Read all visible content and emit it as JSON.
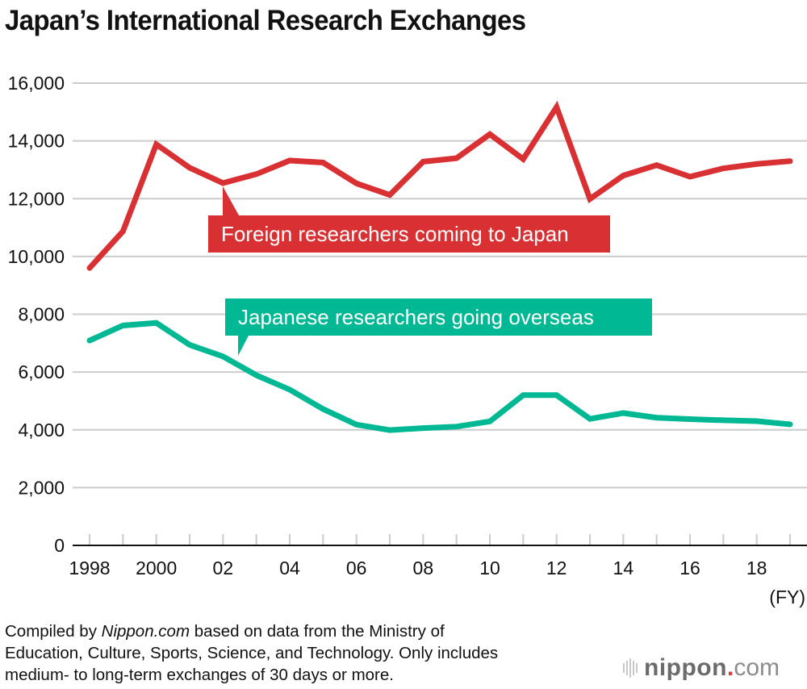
{
  "title": "Japan’s International Research Exchanges",
  "x_unit": "(FY)",
  "note": {
    "prefix": "Compiled by ",
    "source_italic": "Nippon.com",
    "rest_line1": " based on data from the Ministry of",
    "line2": "Education, Culture, Sports, Science, and Technology. Only includes",
    "line3": "medium- to long-term exchanges of 30 days or more."
  },
  "logo": {
    "brand": "nippon",
    "dot": ".",
    "suffix": "com"
  },
  "colors": {
    "foreign": "#d93033",
    "japanese": "#00b894",
    "grid": "#cccccc",
    "axis": "#111111"
  },
  "chart_data": {
    "type": "line",
    "title": "Japan’s International Research Exchanges",
    "xlabel": "(FY)",
    "ylabel": "",
    "x": [
      1998,
      1999,
      2000,
      2001,
      2002,
      2003,
      2004,
      2005,
      2006,
      2007,
      2008,
      2009,
      2010,
      2011,
      2012,
      2013,
      2014,
      2015,
      2016,
      2017,
      2018,
      2019
    ],
    "x_tick_labels": [
      {
        "x": 1998,
        "label": "1998"
      },
      {
        "x": 2000,
        "label": "2000"
      },
      {
        "x": 2002,
        "label": "02"
      },
      {
        "x": 2004,
        "label": "04"
      },
      {
        "x": 2006,
        "label": "06"
      },
      {
        "x": 2008,
        "label": "08"
      },
      {
        "x": 2010,
        "label": "10"
      },
      {
        "x": 2012,
        "label": "12"
      },
      {
        "x": 2014,
        "label": "14"
      },
      {
        "x": 2016,
        "label": "16"
      },
      {
        "x": 2018,
        "label": "18"
      }
    ],
    "y_ticks": [
      0,
      2000,
      4000,
      6000,
      8000,
      10000,
      12000,
      14000,
      16000
    ],
    "y_tick_labels": [
      "0",
      "2,000",
      "4,000",
      "6,000",
      "8,000",
      "10,000",
      "12,000",
      "14,000",
      "16,000"
    ],
    "ylim": [
      0,
      16000
    ],
    "grid": true,
    "series": [
      {
        "name": "Foreign researchers coming to Japan",
        "color": "#d93033",
        "values": [
          9600,
          10870,
          13880,
          13070,
          12540,
          12850,
          13320,
          13250,
          12530,
          12130,
          13280,
          13400,
          14230,
          13370,
          15170,
          11990,
          12800,
          13160,
          12760,
          13050,
          13200,
          13300
        ]
      },
      {
        "name": "Japanese researchers going overseas",
        "color": "#00b894",
        "values": [
          7090,
          7610,
          7700,
          6940,
          6540,
          5890,
          5390,
          4720,
          4180,
          3990,
          4060,
          4110,
          4290,
          5200,
          5200,
          4380,
          4580,
          4420,
          4370,
          4330,
          4300,
          4190
        ]
      }
    ],
    "annotations": [
      {
        "series": 0,
        "text": "Foreign researchers coming to Japan",
        "points_to_x": 2002
      },
      {
        "series": 1,
        "text": "Japanese researchers going overseas",
        "points_to_x": 2002.5
      }
    ]
  }
}
